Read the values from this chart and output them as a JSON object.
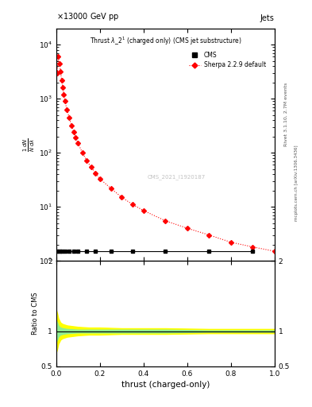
{
  "title": "13000 GeV pp",
  "subtitle": "Jets",
  "plot_title": "Thrust $\\lambda\\_2^1$ (charged only) (CMS jet substructure)",
  "cms_label": "CMS",
  "sherpa_label": "Sherpa 2.2.9 default",
  "watermark": "CMS_2021_I1920187",
  "right_label": "Rivet 3.1.10, 2.7M events",
  "arxiv_label": "mcplots.cern.ch [arXiv:1306.3436]",
  "xlabel": "thrust (charged-only)",
  "ratio_ylabel": "Ratio to CMS",
  "sherpa_x": [
    0.005,
    0.01,
    0.015,
    0.02,
    0.025,
    0.03,
    0.035,
    0.04,
    0.05,
    0.06,
    0.07,
    0.08,
    0.09,
    0.1,
    0.12,
    0.14,
    0.16,
    0.18,
    0.2,
    0.25,
    0.3,
    0.35,
    0.4,
    0.5,
    0.6,
    0.7,
    0.8,
    0.9,
    1.0
  ],
  "sherpa_y": [
    3000,
    6000,
    4500,
    3200,
    2200,
    1600,
    1200,
    900,
    620,
    440,
    320,
    240,
    190,
    150,
    100,
    72,
    54,
    42,
    33,
    22,
    15,
    11,
    8.5,
    5.5,
    4.0,
    3.0,
    2.2,
    1.8,
    1.5
  ],
  "cms_x": [
    0.005,
    0.015,
    0.025,
    0.04,
    0.06,
    0.08,
    0.1,
    0.14,
    0.18,
    0.25,
    0.35,
    0.5,
    0.7,
    0.9
  ],
  "cms_y": [
    1.5,
    1.5,
    1.5,
    1.5,
    1.5,
    1.5,
    1.5,
    1.5,
    1.5,
    1.5,
    1.5,
    1.5,
    1.5,
    1.5
  ],
  "ylim_main": [
    1.0,
    20000
  ],
  "ylim_ratio": [
    0.5,
    2.0
  ],
  "xlim": [
    0.0,
    1.0
  ],
  "bg_color": "#ffffff",
  "cms_color": "#000000",
  "sherpa_color": "#ff0000"
}
